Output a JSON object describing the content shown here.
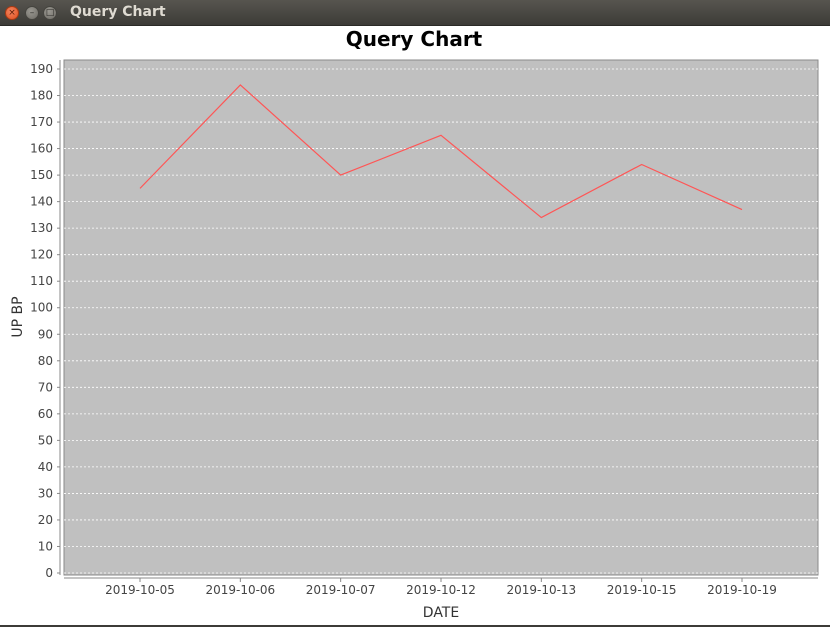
{
  "window": {
    "title": "Query Chart",
    "close_glyph": "×",
    "minimize_glyph": "–",
    "maximize_glyph": "□"
  },
  "chart_data": {
    "type": "line",
    "title": "Query Chart",
    "xlabel": "DATE",
    "ylabel": "UP BP",
    "categories": [
      "2019-10-05",
      "2019-10-06",
      "2019-10-07",
      "2019-10-12",
      "2019-10-13",
      "2019-10-15",
      "2019-10-19"
    ],
    "series": [
      {
        "values": [
          145,
          184,
          150,
          165,
          134,
          154,
          137
        ],
        "color": "#ff5555"
      }
    ],
    "ylim": [
      0,
      190
    ],
    "yticks": [
      0,
      10,
      20,
      30,
      40,
      50,
      60,
      70,
      80,
      90,
      100,
      110,
      120,
      130,
      140,
      150,
      160,
      170,
      180,
      190
    ],
    "grid": true,
    "plot_background": "#c0c0c0",
    "gridline_color": "#ffffff",
    "legend": "none"
  }
}
